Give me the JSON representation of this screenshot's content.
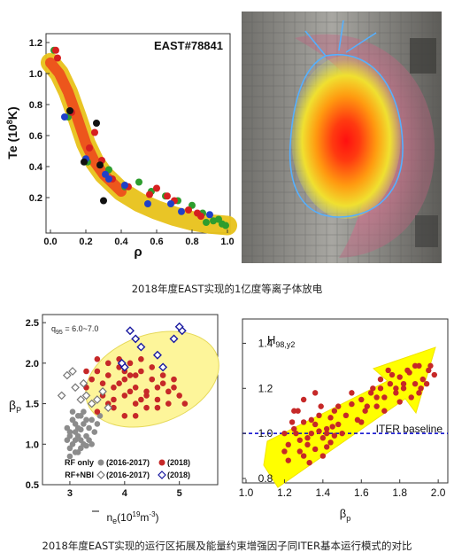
{
  "captions": {
    "top": "2018年度EAST实现的1亿度等离子体放电",
    "bottom": "2018年度EAST实现的运行区拓展及能量约束增强因子同ITER基本运行模式的对比"
  },
  "colors": {
    "band_outer": "#e8c21a",
    "band_inner": "#ee3a1a",
    "rf_2018": "#c62828",
    "rf_old": "#8c8c8c",
    "nbi_2018": "#1a1aa0",
    "nbi_old": "#777777",
    "zone": "#fdf59a",
    "arrow": "#ffff00",
    "baseline": "#0000cc"
  },
  "chart_data": [
    {
      "type": "scatter",
      "title": "EAST#78841",
      "xlabel": "ρ",
      "ylabel_main": "Te (10",
      "ylabel_sup": "8",
      "ylabel_tail": "K)",
      "xlim": [
        0,
        1.0
      ],
      "ylim": [
        0,
        1.2
      ],
      "xticks": [
        "0.0",
        "0.2",
        "0.4",
        "0.6",
        "0.8",
        "1.0"
      ],
      "yticks": [
        "0.2",
        "0.4",
        "0.6",
        "0.8",
        "1.0",
        "1.2"
      ],
      "band": {
        "x": [
          0.0,
          0.05,
          0.1,
          0.15,
          0.2,
          0.25,
          0.3,
          0.4,
          0.5,
          0.6,
          0.7,
          0.8,
          0.9,
          1.0
        ],
        "y": [
          1.07,
          1.0,
          0.88,
          0.72,
          0.55,
          0.43,
          0.35,
          0.24,
          0.17,
          0.12,
          0.08,
          0.05,
          0.03,
          0.02
        ]
      },
      "series": [
        {
          "color": "green",
          "x": [
            0.02,
            0.1,
            0.21,
            0.33,
            0.42,
            0.5,
            0.57,
            0.65,
            0.72,
            0.8,
            0.86,
            0.92,
            0.97,
            0.99,
            0.95,
            0.88
          ],
          "y": [
            1.15,
            0.72,
            0.43,
            0.38,
            0.27,
            0.3,
            0.24,
            0.21,
            0.18,
            0.15,
            0.1,
            0.05,
            0.03,
            0.02,
            0.06,
            0.04
          ]
        },
        {
          "color": "red",
          "x": [
            0.03,
            0.04,
            0.12,
            0.22,
            0.25,
            0.29,
            0.35,
            0.44,
            0.56,
            0.6,
            0.66,
            0.7,
            0.78,
            0.83,
            0.85
          ],
          "y": [
            1.15,
            1.1,
            0.75,
            0.52,
            0.62,
            0.44,
            0.32,
            0.27,
            0.22,
            0.26,
            0.21,
            0.18,
            0.12,
            0.1,
            0.08
          ]
        },
        {
          "color": "blue",
          "x": [
            0.08,
            0.2,
            0.31,
            0.33,
            0.42,
            0.55,
            0.68,
            0.74,
            0.9
          ],
          "y": [
            0.72,
            0.45,
            0.35,
            0.32,
            0.28,
            0.16,
            0.16,
            0.11,
            0.09
          ]
        },
        {
          "color": "black",
          "x": [
            0.11,
            0.19,
            0.26,
            0.28,
            0.3
          ],
          "y": [
            0.76,
            0.43,
            0.68,
            0.41,
            0.18
          ]
        }
      ]
    },
    {
      "type": "scatter",
      "xlabel": "n",
      "xlabel_tail": "e",
      "xlabel_unit": "(10",
      "xlabel_sup": "19",
      "xlabel_unit_tail": "m",
      "xlabel_sup2": "-3",
      "xlabel_close": ")",
      "ylabel": "β",
      "ylabel_sub": "P",
      "annotation": "q",
      "annotation_sub": "95",
      "annotation_tail": " = 6.0~7.0",
      "xlim": [
        2.5,
        5.7
      ],
      "ylim": [
        0.5,
        2.6
      ],
      "xticks": [
        "3",
        "4",
        "5"
      ],
      "yticks": [
        "0.5",
        "1.0",
        "1.5",
        "2.0",
        "2.5"
      ],
      "legend": {
        "rf_label": "RF only",
        "nbi_label": "RF+NBI",
        "old": "(2016-2017)",
        "new": "(2018)"
      },
      "series": [
        {
          "name": "RF only (2016-2017)",
          "marker": "circle-grey",
          "x": [
            2.95,
            3.0,
            3.05,
            3.0,
            3.1,
            3.15,
            3.2,
            3.05,
            3.1,
            3.25,
            3.3,
            3.15,
            3.2,
            3.35,
            3.4,
            3.0,
            3.1,
            3.25,
            3.45,
            3.5,
            3.05,
            3.15,
            3.3,
            2.95,
            3.2,
            3.35,
            3.1,
            3.0,
            3.4,
            3.25,
            3.15,
            3.05,
            3.55,
            3.3,
            3.2
          ],
          "y": [
            1.2,
            1.1,
            1.3,
            0.95,
            1.05,
            1.2,
            1.35,
            1.0,
            1.15,
            1.25,
            1.1,
            0.9,
            1.05,
            1.2,
            1.3,
            0.85,
            1.25,
            1.0,
            1.15,
            1.25,
            1.4,
            1.35,
            1.3,
            1.05,
            0.95,
            1.05,
            0.9,
            1.15,
            1.0,
            1.4,
            1.1,
            1.3,
            1.35,
            0.98,
            1.18
          ]
        },
        {
          "name": "RF only (2018)",
          "marker": "circle-red",
          "x": [
            3.4,
            3.6,
            3.8,
            4.0,
            4.2,
            4.4,
            4.6,
            4.8,
            5.0,
            3.5,
            3.7,
            3.9,
            4.1,
            4.3,
            4.5,
            4.7,
            4.9,
            3.3,
            3.6,
            3.8,
            4.0,
            4.2,
            4.4,
            4.6,
            4.8,
            3.4,
            3.7,
            3.9,
            4.1,
            4.3,
            4.5,
            4.7,
            3.5,
            3.8,
            4.0,
            4.2,
            4.4,
            4.6,
            3.6,
            3.9,
            4.1,
            4.3,
            3.3,
            3.2,
            3.5,
            4.9,
            5.1,
            4.0,
            4.2,
            3.7
          ],
          "y": [
            1.5,
            1.6,
            1.7,
            1.8,
            1.7,
            1.6,
            1.55,
            1.65,
            1.6,
            1.9,
            2.0,
            1.95,
            1.85,
            1.9,
            1.8,
            1.75,
            1.7,
            1.7,
            1.75,
            1.55,
            1.6,
            1.5,
            1.45,
            1.45,
            1.5,
            1.8,
            1.85,
            2.05,
            2.0,
            2.05,
            1.95,
            1.85,
            1.4,
            1.45,
            1.35,
            1.35,
            1.65,
            1.7,
            1.65,
            1.75,
            1.65,
            1.55,
            1.9,
            1.55,
            2.05,
            1.8,
            1.5,
            1.9,
            1.85,
            1.5
          ]
        },
        {
          "name": "RF+NBI (2016-2017)",
          "marker": "diamond-grey",
          "x": [
            2.85,
            2.95,
            3.1,
            3.2,
            3.3,
            3.4,
            3.6,
            3.7,
            3.05,
            3.25,
            3.5
          ],
          "y": [
            1.6,
            1.85,
            1.7,
            1.55,
            1.6,
            1.5,
            1.65,
            1.45,
            1.9,
            1.75,
            1.55
          ]
        },
        {
          "name": "RF+NBI (2018)",
          "marker": "diamond-blue",
          "x": [
            4.0,
            4.1,
            4.2,
            4.6,
            4.7,
            4.9,
            5.05,
            5.0,
            4.3,
            3.95
          ],
          "y": [
            1.95,
            2.4,
            2.3,
            2.1,
            1.95,
            2.3,
            2.4,
            2.45,
            2.2,
            2.0
          ]
        }
      ]
    },
    {
      "type": "scatter",
      "ylabel": "H",
      "ylabel_sub": "98,y2",
      "xlabel": "β",
      "xlabel_sub": "p",
      "xlim": [
        1.0,
        2.05
      ],
      "ylim": [
        0.8,
        1.5
      ],
      "xticks": [
        "1.0",
        "1.2",
        "1.4",
        "1.6",
        "1.8",
        "2.0"
      ],
      "yticks": [
        "0.8",
        "1.0",
        "1.2",
        "1.4"
      ],
      "baseline": {
        "y": 1.0,
        "label": "ITER baseline"
      },
      "series": [
        {
          "marker": "circle-red",
          "x": [
            1.2,
            1.22,
            1.25,
            1.28,
            1.3,
            1.32,
            1.34,
            1.36,
            1.38,
            1.4,
            1.42,
            1.44,
            1.46,
            1.48,
            1.5,
            1.22,
            1.26,
            1.3,
            1.34,
            1.38,
            1.42,
            1.46,
            1.24,
            1.28,
            1.32,
            1.36,
            1.4,
            1.44,
            1.27,
            1.33,
            1.39,
            1.45,
            1.52,
            1.55,
            1.58,
            1.6,
            1.62,
            1.65,
            1.68,
            1.7,
            1.72,
            1.75,
            1.78,
            1.8,
            1.82,
            1.85,
            1.88,
            1.9,
            1.92,
            1.95,
            1.6,
            1.66,
            1.72,
            1.78,
            1.84,
            1.9,
            1.96,
            1.55,
            1.63,
            1.7,
            1.76,
            1.82,
            1.88,
            1.94,
            1.98,
            1.86,
            1.91,
            1.8,
            1.74,
            1.68,
            1.3,
            1.36,
            1.42,
            1.48,
            1.25,
            1.2
          ],
          "y": [
            0.92,
            0.88,
            1.02,
            0.97,
            1.05,
            0.95,
            1.0,
            0.93,
            1.08,
            0.98,
            1.02,
            0.96,
            1.1,
            1.04,
            1.0,
            0.95,
            1.0,
            0.9,
            1.06,
            1.01,
            0.94,
            0.99,
            1.05,
            0.92,
            0.98,
            1.04,
            0.9,
            1.07,
            1.1,
            0.87,
            1.12,
            1.03,
            1.08,
            1.13,
            1.06,
            1.15,
            1.1,
            1.18,
            1.12,
            1.2,
            1.16,
            1.22,
            1.18,
            1.25,
            1.2,
            1.27,
            1.22,
            1.3,
            1.24,
            1.28,
            1.05,
            1.2,
            1.1,
            1.2,
            1.28,
            1.18,
            1.3,
            1.18,
            1.12,
            1.24,
            1.26,
            1.22,
            1.3,
            1.22,
            1.26,
            1.16,
            1.2,
            1.14,
            1.28,
            1.16,
            1.15,
            1.18,
            1.0,
            1.12,
            1.1,
            1.0
          ]
        }
      ]
    }
  ]
}
